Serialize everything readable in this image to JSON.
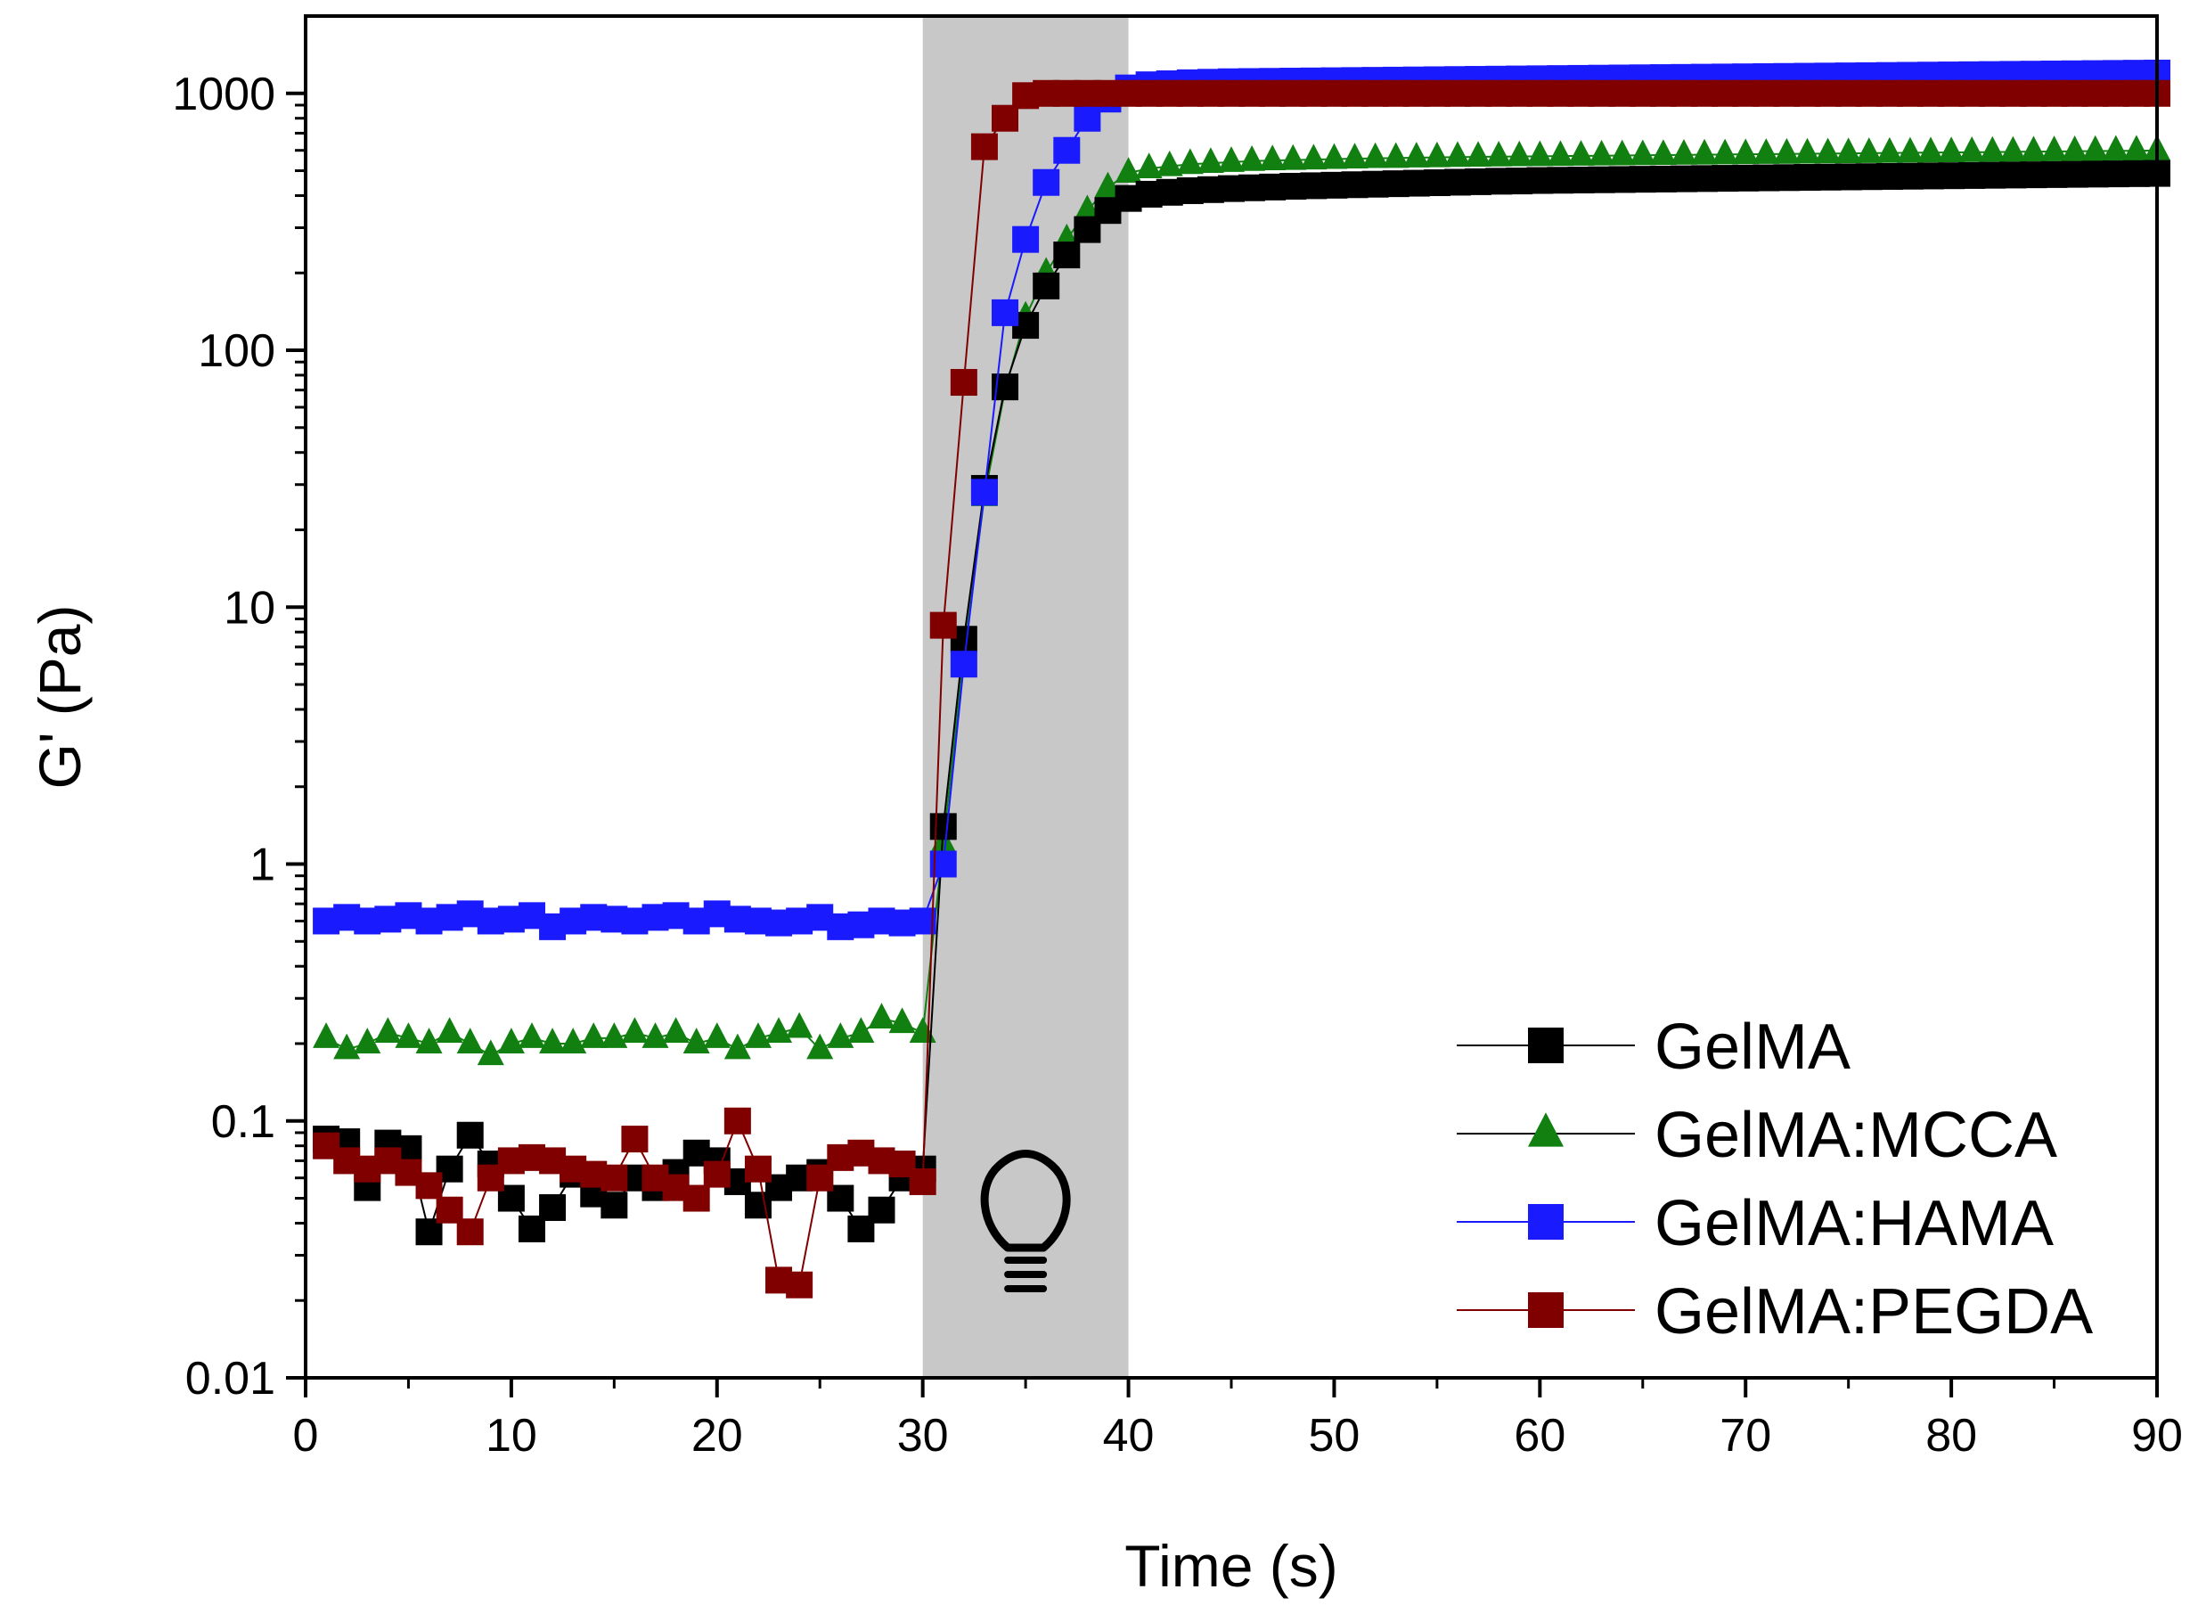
{
  "chart_data": {
    "type": "scatter",
    "title": "",
    "xlabel": "Time (s)",
    "ylabel": "G' (Pa)",
    "xlim": [
      0,
      90
    ],
    "ylim": [
      0.01,
      2000
    ],
    "yscale": "log",
    "x_ticks": [
      0,
      10,
      20,
      30,
      40,
      50,
      60,
      70,
      80,
      90
    ],
    "x_tick_labels": [
      "0",
      "10",
      "20",
      "30",
      "40",
      "50",
      "60",
      "70",
      "80",
      "90"
    ],
    "y_ticks": [
      0.01,
      0.1,
      1,
      10,
      100,
      1000
    ],
    "y_tick_labels": [
      "0.01",
      "0.1",
      "1",
      "10",
      "100",
      "1000"
    ],
    "legend_position": "bottom-right",
    "shaded_region": {
      "x_start": 30,
      "x_end": 40,
      "color": "#c8c8c8",
      "label": "light irradiation"
    },
    "annotation_icon": "lightbulb-icon",
    "x": [
      1,
      2,
      3,
      4,
      5,
      6,
      7,
      8,
      9,
      10,
      11,
      12,
      13,
      14,
      15,
      16,
      17,
      18,
      19,
      20,
      21,
      22,
      23,
      24,
      25,
      26,
      27,
      28,
      29,
      30,
      31,
      32,
      33,
      34,
      35,
      36,
      37,
      38,
      39,
      40,
      41,
      42,
      43,
      44,
      45,
      46,
      47,
      48,
      49,
      50,
      51,
      52,
      53,
      54,
      55,
      56,
      57,
      58,
      59,
      60,
      61,
      62,
      63,
      64,
      65,
      66,
      67,
      68,
      69,
      70,
      71,
      72,
      73,
      74,
      75,
      76,
      77,
      78,
      79,
      80,
      81,
      82,
      83,
      84,
      85,
      86,
      87,
      88,
      89,
      90
    ],
    "series": [
      {
        "name": "GelMA",
        "color": "#000000",
        "marker": "square",
        "values": [
          0.085,
          0.083,
          0.055,
          0.082,
          0.078,
          0.037,
          0.065,
          0.088,
          0.068,
          0.05,
          0.038,
          0.046,
          0.062,
          0.052,
          0.047,
          0.06,
          0.055,
          0.063,
          0.075,
          0.07,
          0.058,
          0.047,
          0.055,
          0.06,
          0.063,
          0.05,
          0.038,
          0.045,
          0.06,
          0.065,
          1.4,
          7.5,
          29,
          72,
          125,
          178,
          235,
          295,
          350,
          390,
          405,
          412,
          418,
          422,
          426,
          429,
          432,
          435,
          437,
          439,
          441,
          443,
          445,
          447,
          449,
          451,
          453,
          455,
          456,
          458,
          459,
          460,
          461,
          462,
          463,
          464,
          465,
          466,
          467,
          468,
          469,
          470,
          471,
          472,
          473,
          474,
          475,
          476,
          477,
          478,
          479,
          480,
          481,
          482,
          483,
          484,
          485,
          486,
          487,
          488
        ]
      },
      {
        "name": "GelMA:MCCA",
        "color": "#118011",
        "marker": "triangle",
        "values": [
          0.21,
          0.19,
          0.2,
          0.22,
          0.21,
          0.2,
          0.22,
          0.2,
          0.18,
          0.2,
          0.21,
          0.2,
          0.2,
          0.21,
          0.21,
          0.22,
          0.21,
          0.22,
          0.2,
          0.21,
          0.19,
          0.21,
          0.22,
          0.23,
          0.19,
          0.21,
          0.22,
          0.25,
          0.24,
          0.22,
          1.2,
          6.5,
          27,
          70,
          135,
          200,
          270,
          350,
          430,
          490,
          510,
          520,
          530,
          535,
          540,
          545,
          548,
          550,
          552,
          555,
          557,
          559,
          560,
          562,
          563,
          565,
          566,
          567,
          568,
          569,
          570,
          571,
          572,
          573,
          574,
          575,
          576,
          577,
          578,
          579,
          580,
          581,
          582,
          583,
          584,
          585,
          586,
          587,
          588,
          589,
          590,
          591,
          592,
          593,
          594,
          595,
          596,
          597,
          598,
          599
        ]
      },
      {
        "name": "GelMA:HAMA",
        "color": "#1a1aff",
        "marker": "square",
        "values": [
          0.6,
          0.62,
          0.6,
          0.61,
          0.63,
          0.6,
          0.62,
          0.64,
          0.6,
          0.61,
          0.63,
          0.57,
          0.6,
          0.62,
          0.61,
          0.6,
          0.62,
          0.63,
          0.6,
          0.64,
          0.61,
          0.6,
          0.59,
          0.6,
          0.62,
          0.57,
          0.58,
          0.6,
          0.59,
          0.6,
          1.0,
          6.0,
          28,
          140,
          270,
          450,
          600,
          800,
          950,
          1050,
          1080,
          1090,
          1100,
          1105,
          1110,
          1112,
          1114,
          1116,
          1118,
          1120,
          1122,
          1124,
          1126,
          1128,
          1130,
          1132,
          1134,
          1136,
          1138,
          1140,
          1142,
          1144,
          1146,
          1148,
          1150,
          1152,
          1154,
          1156,
          1158,
          1160,
          1162,
          1164,
          1166,
          1168,
          1170,
          1172,
          1174,
          1176,
          1178,
          1180,
          1182,
          1184,
          1186,
          1188,
          1190,
          1192,
          1194,
          1196,
          1198,
          1200
        ]
      },
      {
        "name": "GelMA:PEGDA",
        "color": "#800000",
        "marker": "square",
        "values": [
          0.08,
          0.07,
          0.065,
          0.07,
          0.063,
          0.056,
          0.045,
          0.037,
          0.06,
          0.07,
          0.072,
          0.07,
          0.065,
          0.062,
          0.06,
          0.085,
          0.06,
          0.055,
          0.05,
          0.062,
          0.1,
          0.065,
          0.024,
          0.023,
          0.06,
          0.072,
          0.075,
          0.07,
          0.068,
          0.058,
          8.5,
          75,
          620,
          800,
          980,
          1000,
          1000,
          1000,
          1000,
          1000,
          1000,
          1000,
          1000,
          1000,
          1000,
          1000,
          1000,
          1000,
          1000,
          1000,
          1000,
          1000,
          1000,
          1000,
          1000,
          1000,
          1000,
          1000,
          1000,
          1000,
          1000,
          1000,
          1000,
          1000,
          1000,
          1000,
          1000,
          1000,
          1000,
          1000,
          1000,
          1000,
          1000,
          1000,
          1000,
          1000,
          1000,
          1000,
          1000,
          1000,
          1000,
          1000,
          1000,
          1000,
          1000,
          1000,
          1000,
          1000,
          1000,
          1000
        ]
      }
    ]
  }
}
